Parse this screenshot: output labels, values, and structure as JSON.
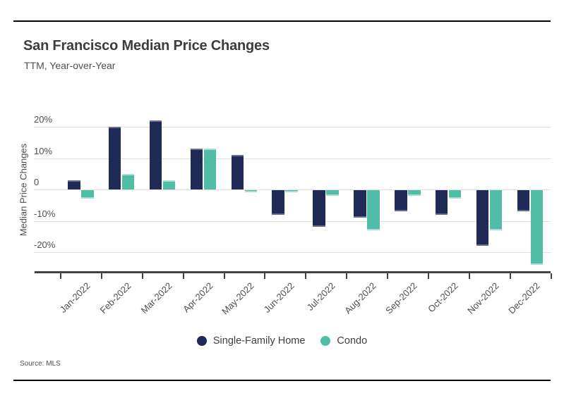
{
  "header": {
    "title": "San Francisco Median Price Changes",
    "subtitle": "TTM, Year-over-Year"
  },
  "source": "Source: MLS",
  "legend": [
    {
      "label": "Single-Family Home",
      "color": "#1f2a56"
    },
    {
      "label": "Condo",
      "color": "#50bda7"
    }
  ],
  "colors": {
    "single_family": "#1f2a56",
    "condo": "#50bda7",
    "gridline": "#dfdfdf",
    "axis": "#434343",
    "text": "#4f4f4f",
    "title_text": "#3c3c3c",
    "border_rule": "#000000"
  },
  "chart_data": {
    "type": "bar",
    "title": "San Francisco Median Price Changes",
    "subtitle": "TTM, Year-over-Year",
    "categories": [
      "Jan-2022",
      "Feb-2022",
      "Mar-2022",
      "Apr-2022",
      "May-2022",
      "Jun-2022",
      "Jul-2022",
      "Aug-2022",
      "Sep-2022",
      "Oct-2022",
      "Nov-2022",
      "Dec-2022"
    ],
    "series": [
      {
        "name": "Single-Family Home",
        "color": "#1f2a56",
        "values": [
          3,
          20,
          22,
          13,
          11,
          -8,
          -12,
          -9,
          -7,
          -8,
          -18,
          -7
        ]
      },
      {
        "name": "Condo",
        "color": "#50bda7",
        "values": [
          -3,
          5,
          3,
          13,
          -1,
          -1,
          -2,
          -13,
          -2,
          -3,
          -13,
          -24
        ]
      }
    ],
    "xlabel": "",
    "ylabel": "Median Price Changes",
    "unit": "percent",
    "y_ticks": [
      {
        "value": 20,
        "label": "20%"
      },
      {
        "value": 10,
        "label": "10%"
      },
      {
        "value": 0,
        "label": "0"
      },
      {
        "value": -10,
        "label": "-10%"
      },
      {
        "value": -20,
        "label": "-20%"
      }
    ],
    "ylim": [
      -26,
      24
    ],
    "grid": true,
    "legend_position": "bottom",
    "source_note": "Source: MLS"
  }
}
